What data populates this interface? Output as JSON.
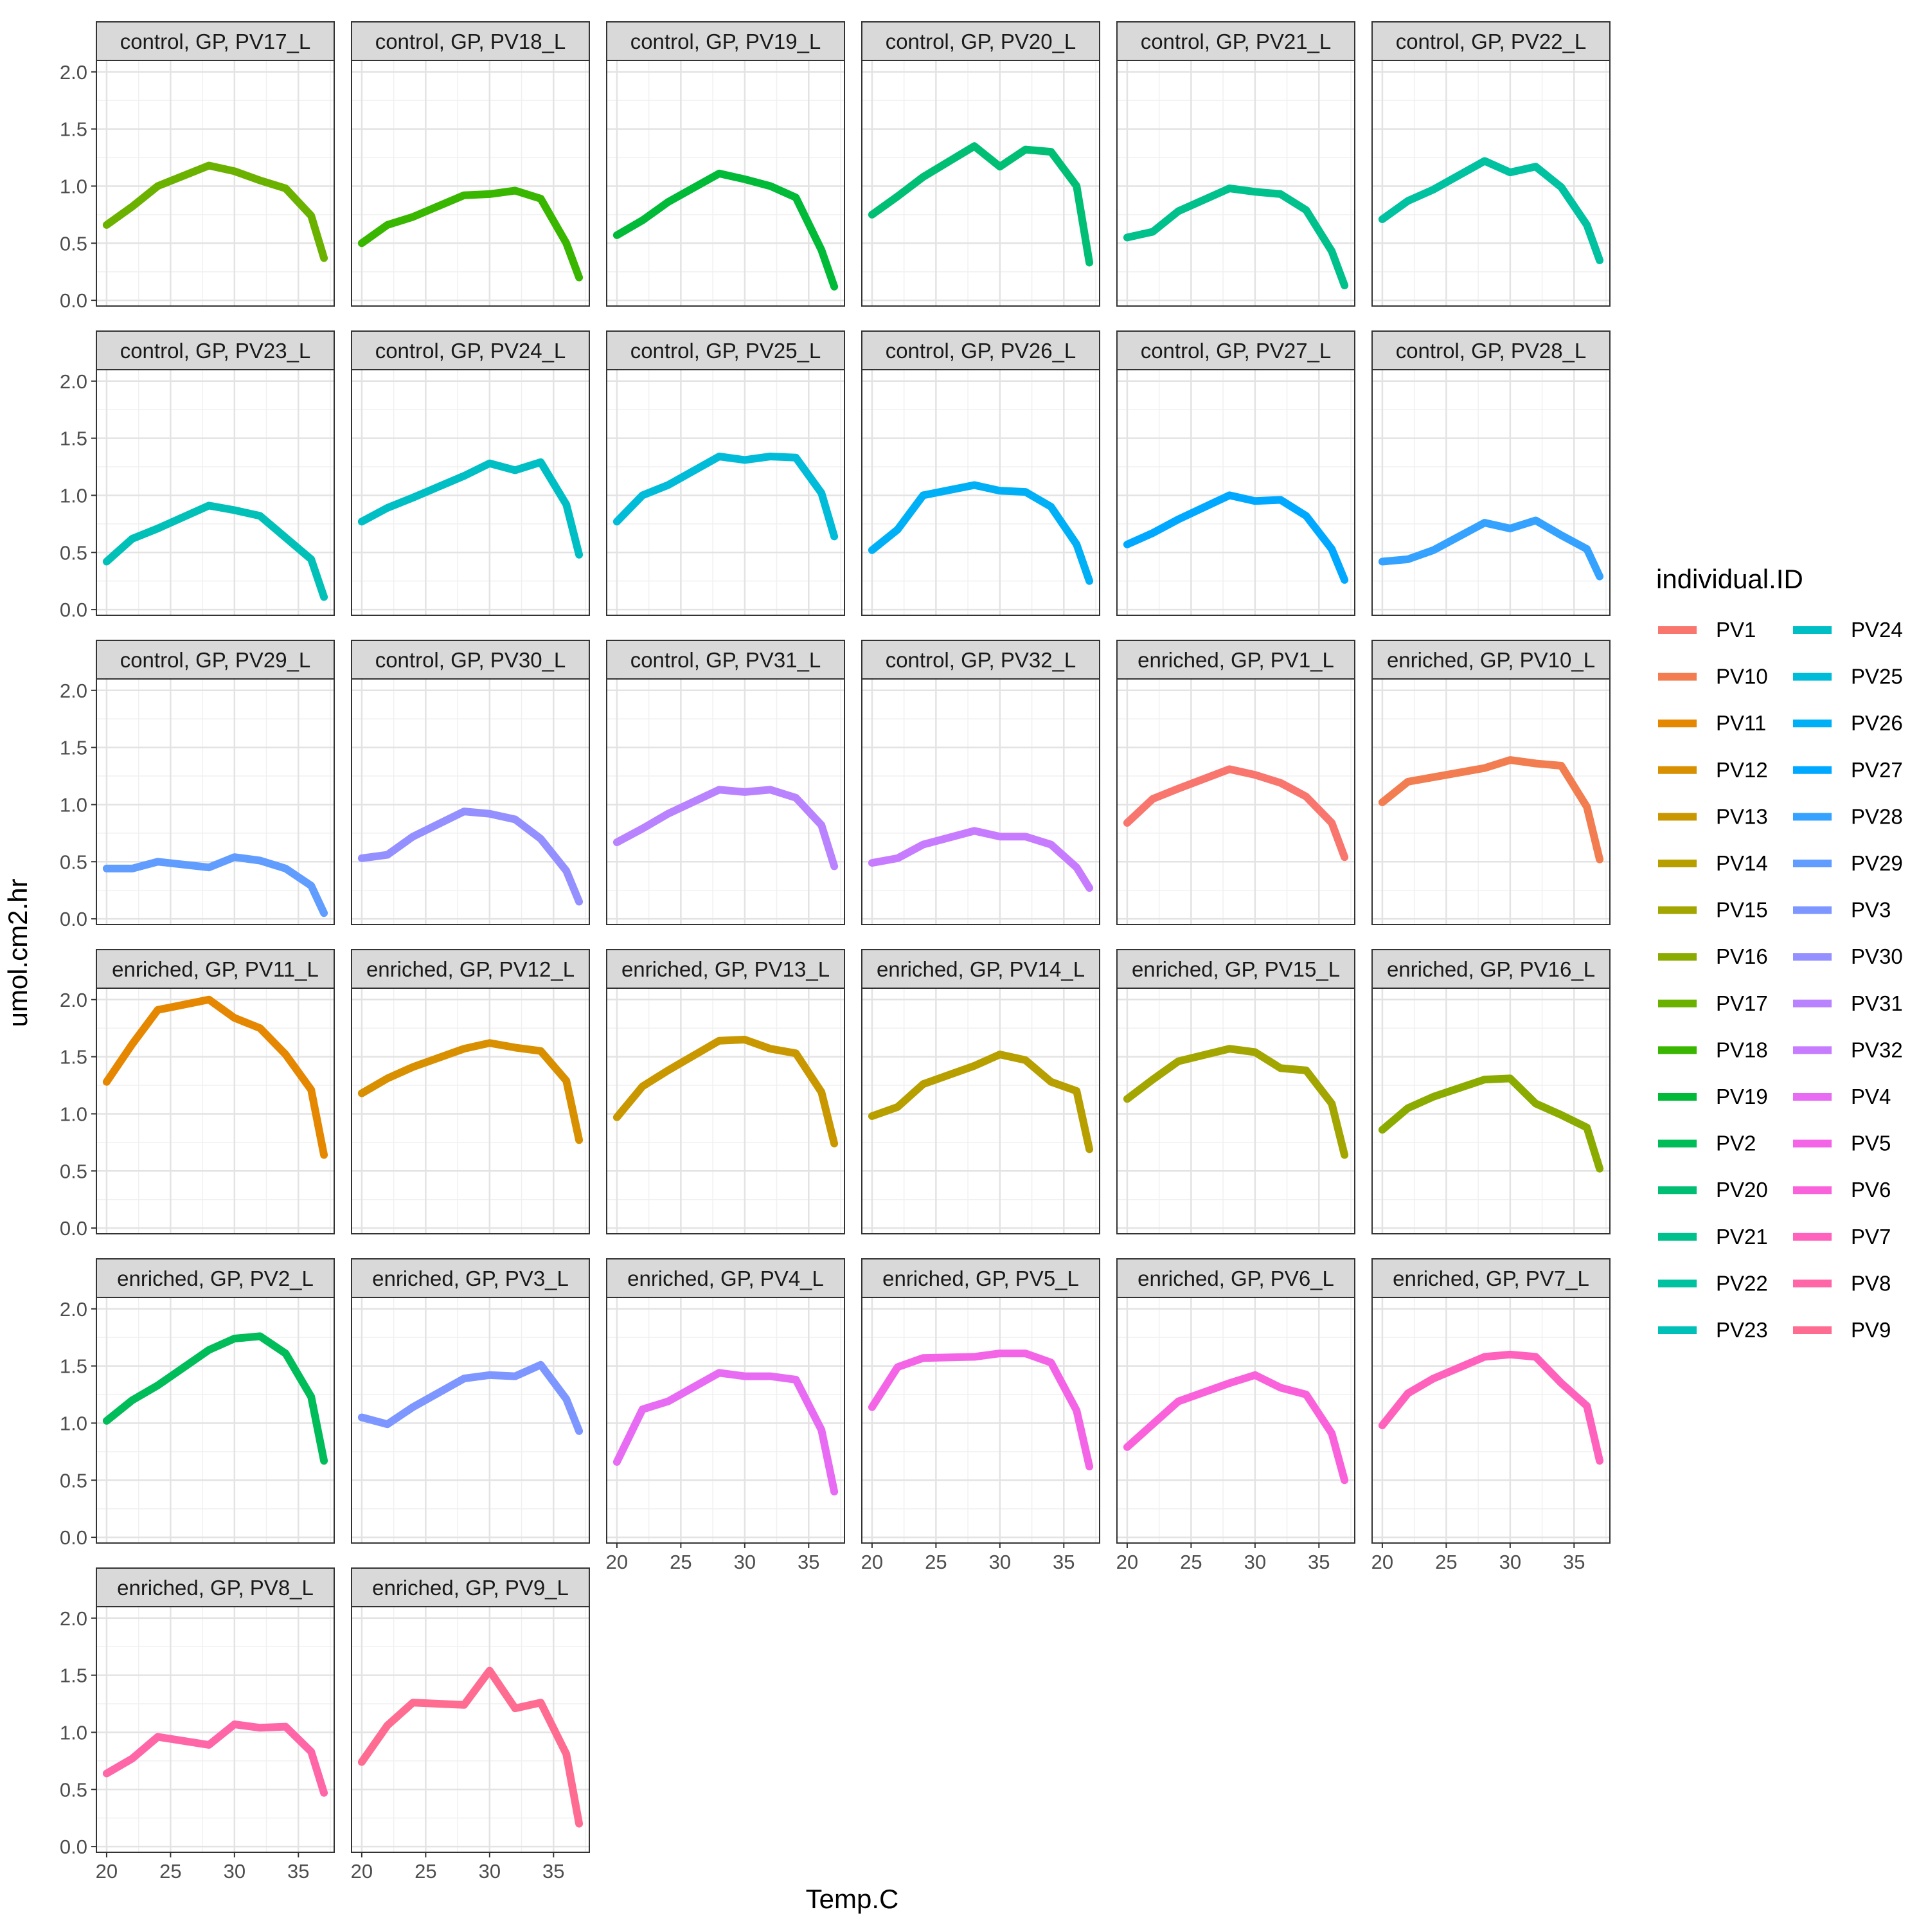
{
  "chart_data": {
    "type": "line",
    "layout": "facet-grid",
    "xlabel": "Temp.C",
    "ylabel": "umol.cm2.hr",
    "xlim": [
      19.2,
      37.8
    ],
    "ylim": [
      -0.05,
      2.1
    ],
    "x_ticks": [
      20,
      25,
      30,
      35
    ],
    "y_ticks": [
      "0.0",
      "0.5",
      "1.0",
      "1.5",
      "2.0"
    ],
    "x": [
      20,
      22,
      24,
      28,
      30,
      32,
      34,
      36,
      37
    ],
    "grid": true,
    "legend": {
      "title": "individual.ID",
      "position": "right",
      "columns": 2,
      "entries": [
        {
          "name": "PV1",
          "color": "#F8766D"
        },
        {
          "name": "PV10",
          "color": "#F17D51"
        },
        {
          "name": "PV11",
          "color": "#E58700"
        },
        {
          "name": "PV12",
          "color": "#D89000"
        },
        {
          "name": "PV13",
          "color": "#C99800"
        },
        {
          "name": "PV14",
          "color": "#B79F00"
        },
        {
          "name": "PV15",
          "color": "#A3A500"
        },
        {
          "name": "PV16",
          "color": "#8BAB00"
        },
        {
          "name": "PV17",
          "color": "#6BB100"
        },
        {
          "name": "PV18",
          "color": "#39B600"
        },
        {
          "name": "PV19",
          "color": "#00BA38"
        },
        {
          "name": "PV2",
          "color": "#00BC59"
        },
        {
          "name": "PV20",
          "color": "#00BF74"
        },
        {
          "name": "PV21",
          "color": "#00C08B"
        },
        {
          "name": "PV22",
          "color": "#00C1A0"
        },
        {
          "name": "PV23",
          "color": "#00C0B8"
        },
        {
          "name": "PV24",
          "color": "#00BFC4"
        },
        {
          "name": "PV25",
          "color": "#00BCD8"
        },
        {
          "name": "PV26",
          "color": "#00B0F6"
        },
        {
          "name": "PV27",
          "color": "#00A9FF"
        },
        {
          "name": "PV28",
          "color": "#35A2FF"
        },
        {
          "name": "PV29",
          "color": "#619CFF"
        },
        {
          "name": "PV3",
          "color": "#7E96FF"
        },
        {
          "name": "PV30",
          "color": "#9590FF"
        },
        {
          "name": "PV31",
          "color": "#B983FF"
        },
        {
          "name": "PV32",
          "color": "#C77CFF"
        },
        {
          "name": "PV4",
          "color": "#E76BF3"
        },
        {
          "name": "PV5",
          "color": "#F365E6"
        },
        {
          "name": "PV6",
          "color": "#FA62DB"
        },
        {
          "name": "PV7",
          "color": "#FF62BC"
        },
        {
          "name": "PV8",
          "color": "#FF66A8"
        },
        {
          "name": "PV9",
          "color": "#FF6C91"
        }
      ]
    },
    "panels": [
      {
        "label": "control, GP, PV17_L",
        "id": "PV17",
        "values": [
          0.66,
          0.82,
          1.0,
          1.18,
          1.13,
          1.05,
          0.98,
          0.74,
          0.37
        ]
      },
      {
        "label": "control, GP, PV18_L",
        "id": "PV18",
        "values": [
          0.5,
          0.66,
          0.73,
          0.92,
          0.93,
          0.96,
          0.89,
          0.5,
          0.2
        ]
      },
      {
        "label": "control, GP, PV19_L",
        "id": "PV19",
        "values": [
          0.57,
          0.7,
          0.86,
          1.11,
          1.06,
          1.0,
          0.9,
          0.44,
          0.12
        ]
      },
      {
        "label": "control, GP, PV20_L",
        "id": "PV20",
        "values": [
          0.75,
          0.91,
          1.08,
          1.35,
          1.17,
          1.32,
          1.3,
          1.0,
          0.33
        ]
      },
      {
        "label": "control, GP, PV21_L",
        "id": "PV21",
        "values": [
          0.55,
          0.6,
          0.78,
          0.98,
          0.95,
          0.93,
          0.79,
          0.43,
          0.13
        ]
      },
      {
        "label": "control, GP, PV22_L",
        "id": "PV22",
        "values": [
          0.71,
          0.87,
          0.97,
          1.22,
          1.12,
          1.17,
          0.99,
          0.66,
          0.35
        ]
      },
      {
        "label": "control, GP, PV23_L",
        "id": "PV23",
        "values": [
          0.42,
          0.62,
          0.71,
          0.91,
          0.87,
          0.82,
          0.63,
          0.44,
          0.11
        ]
      },
      {
        "label": "control, GP, PV24_L",
        "id": "PV24",
        "values": [
          0.77,
          0.89,
          0.98,
          1.17,
          1.28,
          1.22,
          1.29,
          0.92,
          0.48
        ]
      },
      {
        "label": "control, GP, PV25_L",
        "id": "PV25",
        "values": [
          0.77,
          1.0,
          1.09,
          1.34,
          1.31,
          1.34,
          1.33,
          1.02,
          0.64
        ]
      },
      {
        "label": "control, GP, PV26_L",
        "id": "PV26",
        "values": [
          0.52,
          0.7,
          1.0,
          1.09,
          1.04,
          1.03,
          0.9,
          0.57,
          0.25
        ]
      },
      {
        "label": "control, GP, PV27_L",
        "id": "PV27",
        "values": [
          0.57,
          0.67,
          0.79,
          1.0,
          0.95,
          0.96,
          0.82,
          0.53,
          0.26
        ]
      },
      {
        "label": "control, GP, PV28_L",
        "id": "PV28",
        "values": [
          0.42,
          0.44,
          0.52,
          0.76,
          0.71,
          0.78,
          0.65,
          0.53,
          0.29
        ]
      },
      {
        "label": "control, GP, PV29_L",
        "id": "PV29",
        "values": [
          0.44,
          0.44,
          0.5,
          0.45,
          0.54,
          0.51,
          0.44,
          0.29,
          0.05
        ]
      },
      {
        "label": "control, GP, PV30_L",
        "id": "PV30",
        "values": [
          0.53,
          0.56,
          0.72,
          0.94,
          0.92,
          0.87,
          0.7,
          0.42,
          0.15
        ]
      },
      {
        "label": "control, GP, PV31_L",
        "id": "PV31",
        "values": [
          0.67,
          0.79,
          0.92,
          1.13,
          1.11,
          1.13,
          1.06,
          0.82,
          0.46
        ]
      },
      {
        "label": "control, GP, PV32_L",
        "id": "PV32",
        "values": [
          0.49,
          0.53,
          0.65,
          0.77,
          0.72,
          0.72,
          0.65,
          0.45,
          0.27
        ]
      },
      {
        "label": "enriched, GP, PV1_L",
        "id": "PV1",
        "values": [
          0.84,
          1.05,
          1.14,
          1.31,
          1.26,
          1.19,
          1.07,
          0.84,
          0.54
        ]
      },
      {
        "label": "enriched, GP, PV10_L",
        "id": "PV10",
        "values": [
          1.02,
          1.2,
          1.24,
          1.32,
          1.39,
          1.36,
          1.34,
          0.98,
          0.52
        ]
      },
      {
        "label": "enriched, GP, PV11_L",
        "id": "PV11",
        "values": [
          1.28,
          1.61,
          1.91,
          2.0,
          1.84,
          1.75,
          1.52,
          1.21,
          0.64
        ]
      },
      {
        "label": "enriched, GP, PV12_L",
        "id": "PV12",
        "values": [
          1.18,
          1.31,
          1.41,
          1.57,
          1.62,
          1.58,
          1.55,
          1.29,
          0.77
        ]
      },
      {
        "label": "enriched, GP, PV13_L",
        "id": "PV13",
        "values": [
          0.97,
          1.24,
          1.38,
          1.64,
          1.65,
          1.57,
          1.53,
          1.19,
          0.74
        ]
      },
      {
        "label": "enriched, GP, PV14_L",
        "id": "PV14",
        "values": [
          0.98,
          1.06,
          1.26,
          1.42,
          1.52,
          1.47,
          1.28,
          1.2,
          0.69
        ]
      },
      {
        "label": "enriched, GP, PV15_L",
        "id": "PV15",
        "values": [
          1.13,
          1.3,
          1.46,
          1.57,
          1.54,
          1.4,
          1.38,
          1.09,
          0.64
        ]
      },
      {
        "label": "enriched, GP, PV16_L",
        "id": "PV16",
        "values": [
          0.86,
          1.05,
          1.15,
          1.3,
          1.31,
          1.09,
          0.99,
          0.88,
          0.52
        ]
      },
      {
        "label": "enriched, GP, PV2_L",
        "id": "PV2",
        "values": [
          1.02,
          1.2,
          1.33,
          1.64,
          1.74,
          1.76,
          1.61,
          1.23,
          0.67
        ]
      },
      {
        "label": "enriched, GP, PV3_L",
        "id": "PV3",
        "values": [
          1.05,
          0.99,
          1.14,
          1.39,
          1.42,
          1.41,
          1.51,
          1.21,
          0.93
        ]
      },
      {
        "label": "enriched, GP, PV4_L",
        "id": "PV4",
        "values": [
          0.66,
          1.12,
          1.19,
          1.44,
          1.41,
          1.41,
          1.38,
          0.94,
          0.4
        ]
      },
      {
        "label": "enriched, GP, PV5_L",
        "id": "PV5",
        "values": [
          1.14,
          1.49,
          1.57,
          1.58,
          1.61,
          1.61,
          1.53,
          1.11,
          0.62
        ]
      },
      {
        "label": "enriched, GP, PV6_L",
        "id": "PV6",
        "values": [
          0.79,
          0.99,
          1.19,
          1.35,
          1.42,
          1.31,
          1.25,
          0.91,
          0.5
        ]
      },
      {
        "label": "enriched, GP, PV7_L",
        "id": "PV7",
        "values": [
          0.98,
          1.26,
          1.39,
          1.58,
          1.6,
          1.58,
          1.35,
          1.15,
          0.67
        ]
      },
      {
        "label": "enriched, GP, PV8_L",
        "id": "PV8",
        "values": [
          0.64,
          0.77,
          0.96,
          0.89,
          1.07,
          1.04,
          1.05,
          0.83,
          0.47
        ]
      },
      {
        "label": "enriched, GP, PV9_L",
        "id": "PV9",
        "values": [
          0.74,
          1.06,
          1.26,
          1.24,
          1.54,
          1.21,
          1.26,
          0.81,
          0.2
        ]
      }
    ]
  }
}
